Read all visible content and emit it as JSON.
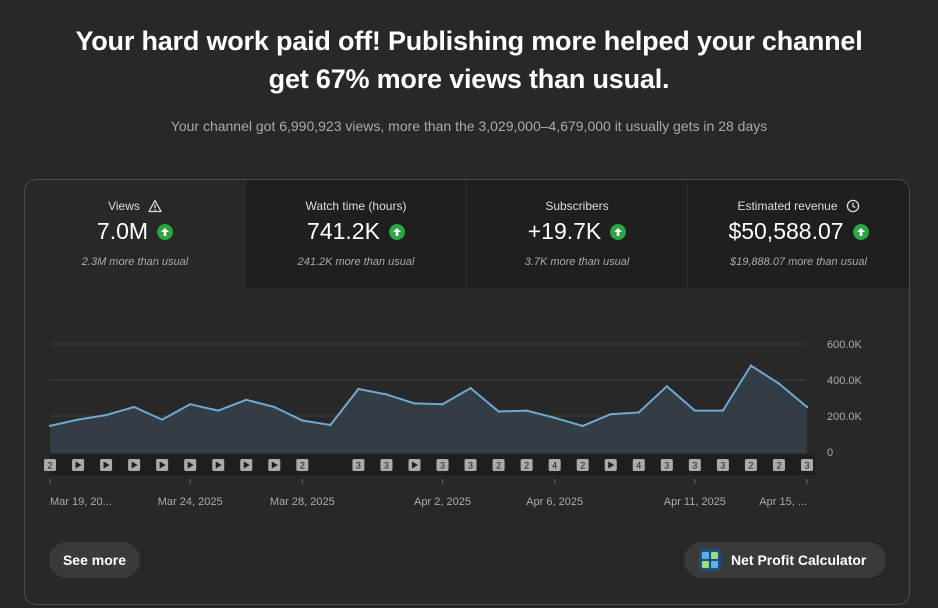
{
  "headline": {
    "line1": "Your hard work paid off! Publishing more helped your channel",
    "line2": "get 67% more views than usual."
  },
  "subline": "Your channel got 6,990,923 views, more than the 3,029,000–4,679,000 it usually gets in 28 days",
  "metrics": [
    {
      "label": "Views",
      "value": "7.0M",
      "note": "2.3M more than usual",
      "icon": "warning-icon"
    },
    {
      "label": "Watch time (hours)",
      "value": "741.2K",
      "note": "241.2K more than usual",
      "icon": ""
    },
    {
      "label": "Subscribers",
      "value": "+19.7K",
      "note": "3.7K more than usual",
      "icon": ""
    },
    {
      "label": "Estimated revenue",
      "value": "$50,588.07",
      "note": "$19,888.07 more than usual",
      "icon": "clock-icon"
    }
  ],
  "colors": {
    "line": "#6fa8d0",
    "area": "#34414b",
    "up": "#2ba640"
  },
  "chart_data": {
    "type": "area",
    "x": [
      "Mar 19, 2025",
      "Mar 20, 2025",
      "Mar 21, 2025",
      "Mar 22, 2025",
      "Mar 23, 2025",
      "Mar 24, 2025",
      "Mar 25, 2025",
      "Mar 26, 2025",
      "Mar 27, 2025",
      "Mar 28, 2025",
      "Mar 29, 2025",
      "Mar 30, 2025",
      "Mar 31, 2025",
      "Apr 1, 2025",
      "Apr 2, 2025",
      "Apr 3, 2025",
      "Apr 4, 2025",
      "Apr 5, 2025",
      "Apr 6, 2025",
      "Apr 7, 2025",
      "Apr 8, 2025",
      "Apr 9, 2025",
      "Apr 10, 2025",
      "Apr 11, 2025",
      "Apr 12, 2025",
      "Apr 13, 2025",
      "Apr 14, 2025",
      "Apr 15, 2025"
    ],
    "values": [
      145000,
      180000,
      205000,
      250000,
      180000,
      265000,
      230000,
      290000,
      250000,
      175000,
      150000,
      350000,
      320000,
      270000,
      265000,
      355000,
      225000,
      230000,
      190000,
      145000,
      210000,
      220000,
      365000,
      230000,
      230000,
      480000,
      380000,
      250000
    ],
    "yticks": [
      "600.0K",
      "400.0K",
      "200.0K",
      "0"
    ],
    "ylim": [
      0,
      600000
    ],
    "xtick_labels": [
      {
        "label": "Mar 19, 20...",
        "index": 0
      },
      {
        "label": "Mar 24, 2025",
        "index": 5
      },
      {
        "label": "Mar 28, 2025",
        "index": 9
      },
      {
        "label": "Apr 2, 2025",
        "index": 14
      },
      {
        "label": "Apr 6, 2025",
        "index": 18
      },
      {
        "label": "Apr 11, 2025",
        "index": 23
      },
      {
        "label": "Apr 15, ...",
        "index": 27
      }
    ],
    "markers": [
      "2",
      "play",
      "play",
      "play",
      "play",
      "play",
      "play",
      "play",
      "play",
      "2",
      "",
      "3",
      "3",
      "play",
      "3",
      "3",
      "2",
      "2",
      "4",
      "2",
      "play",
      "4",
      "3",
      "3",
      "3",
      "2",
      "2",
      "3"
    ]
  },
  "buttons": {
    "see_more": "See more",
    "net_profit": "Net Profit Calculator"
  }
}
